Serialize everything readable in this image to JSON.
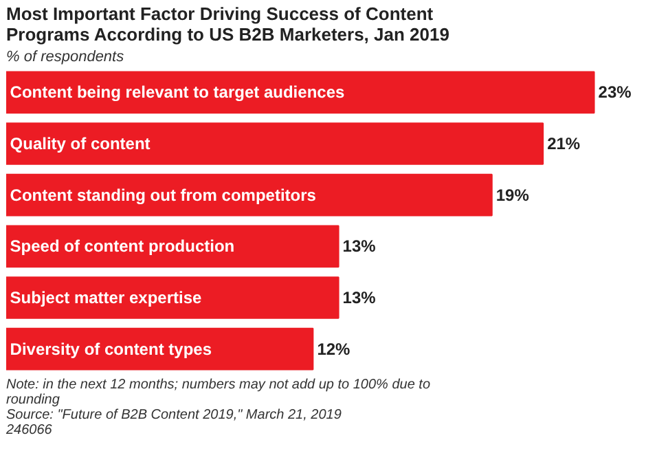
{
  "chart_data": {
    "type": "bar",
    "orientation": "horizontal",
    "title": "Most Important Factor Driving Success of Content Programs According to US B2B Marketers, Jan 2019",
    "subtitle": "% of respondents",
    "categories": [
      "Content being relevant to target audiences",
      "Quality of content",
      "Content standing out from competitors",
      "Speed of content production",
      "Subject matter expertise",
      "Diversity of content types"
    ],
    "values": [
      23,
      21,
      19,
      13,
      13,
      12
    ],
    "value_labels": [
      "23%",
      "21%",
      "19%",
      "13%",
      "13%",
      "12%"
    ],
    "color": "#ec1c24",
    "annotations": [
      "Note: in the next 12 months; numbers may not add up to 100% due to rounding",
      "Source: \"Future of B2B Content 2019,\" March 21, 2019",
      "246066"
    ]
  }
}
